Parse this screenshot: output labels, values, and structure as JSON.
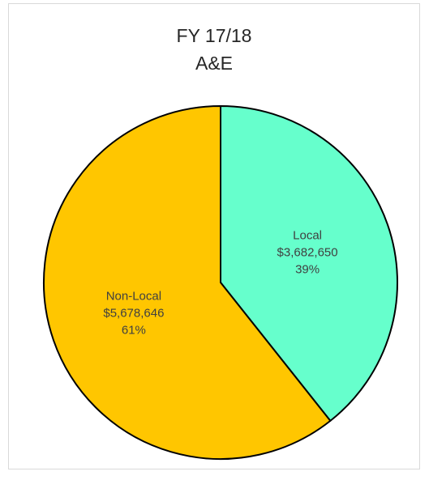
{
  "chart_data": {
    "type": "pie",
    "title_lines": [
      "FY 17/18",
      "A&E"
    ],
    "start_angle_deg": 0,
    "direction": "clockwise",
    "slices": [
      {
        "name": "Local",
        "value": 3682650,
        "value_label": "$3,682,650",
        "percent_label": "39%",
        "color": "#66ffcc"
      },
      {
        "name": "Non-Local",
        "value": 5678646,
        "value_label": "$5,678,646",
        "percent_label": "61%",
        "color": "#ffc600"
      }
    ],
    "outline_color": "#000000",
    "legend": "none"
  }
}
